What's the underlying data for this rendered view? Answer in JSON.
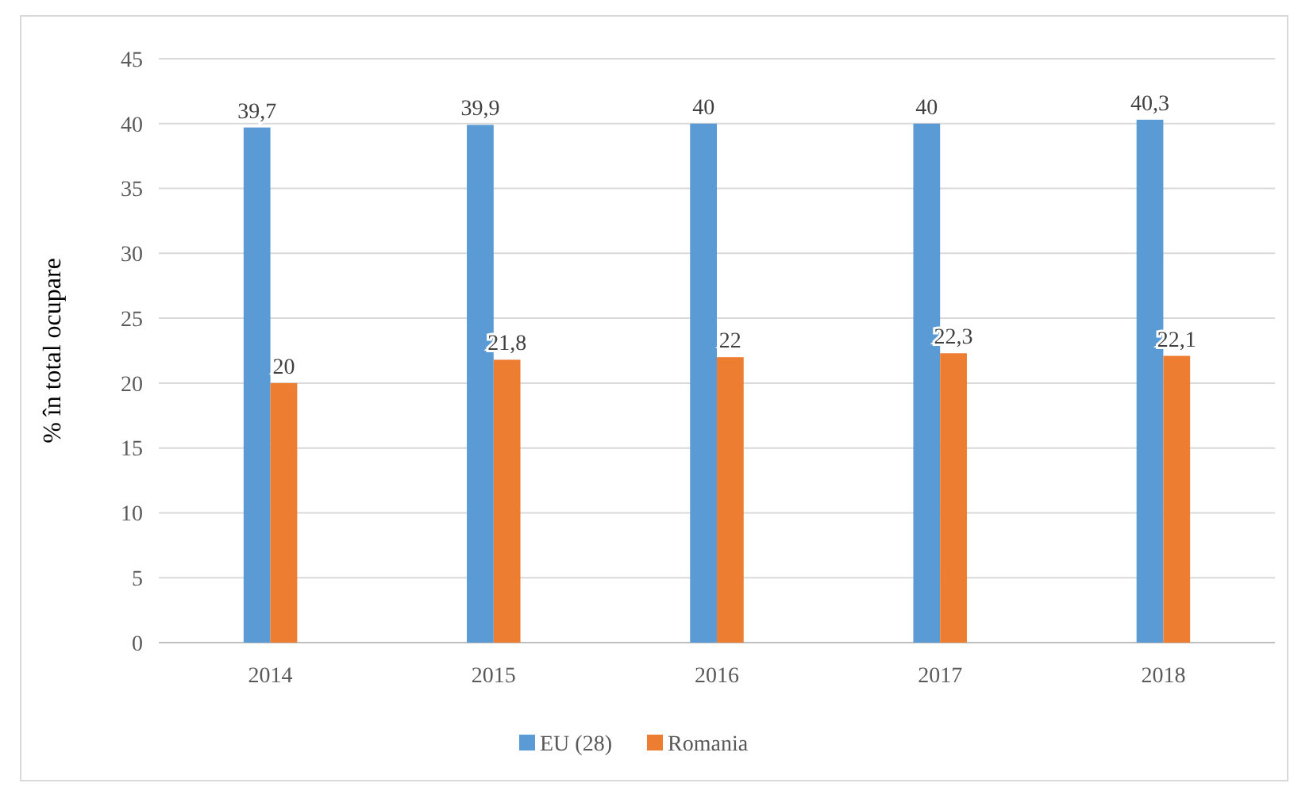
{
  "chart_data": {
    "type": "bar",
    "ylabel": "% în total ocupare",
    "categories": [
      "2014",
      "2015",
      "2016",
      "2017",
      "2018"
    ],
    "series": [
      {
        "name": "EU (28)",
        "color": "#5b9bd5",
        "values": [
          39.7,
          39.9,
          40,
          40,
          40.3
        ],
        "value_labels": [
          "39,7",
          "39,9",
          "40",
          "40",
          "40,3"
        ]
      },
      {
        "name": "Romania",
        "color": "#ed7d31",
        "values": [
          20,
          21.8,
          22,
          22.3,
          22.1
        ],
        "value_labels": [
          "20",
          "21,8",
          "22",
          "22,3",
          "22,1"
        ]
      }
    ],
    "ylim": [
      0,
      45
    ],
    "yticks": [
      0,
      5,
      10,
      15,
      20,
      25,
      30,
      35,
      40,
      45
    ],
    "grid": "y",
    "legend": "bottom"
  }
}
